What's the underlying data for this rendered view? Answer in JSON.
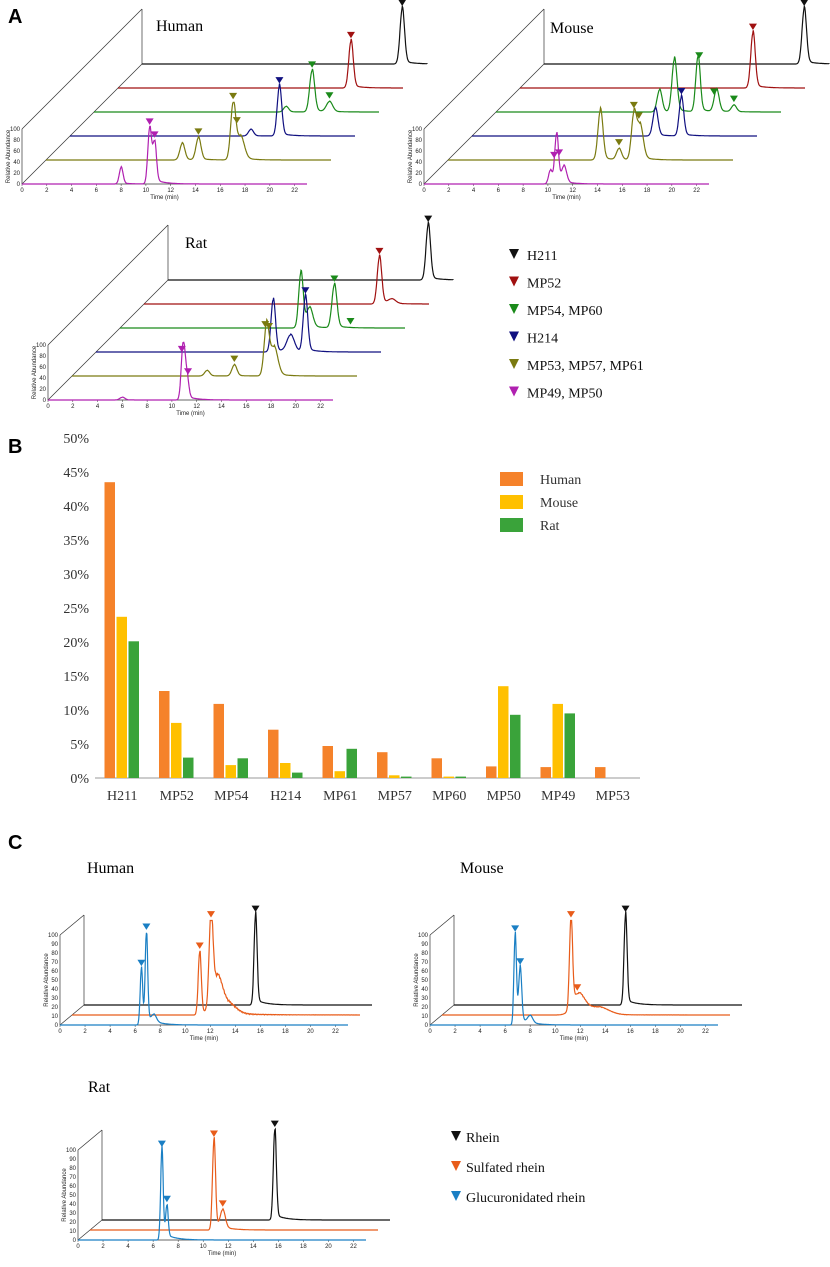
{
  "panels": {
    "a": "A",
    "b": "B",
    "c": "C"
  },
  "common": {
    "time_label": "Time (min)",
    "yaxis_label": "Relative Abundance",
    "y_ticks": [
      "0",
      "10",
      "20",
      "30",
      "40",
      "50",
      "60",
      "70",
      "80",
      "90",
      "100"
    ],
    "x_ticks": [
      "0",
      "2",
      "4",
      "6",
      "8",
      "10",
      "12",
      "14",
      "16",
      "18",
      "20",
      "22"
    ]
  },
  "panel_a": {
    "legend": [
      {
        "label": "H211",
        "color": "#111111"
      },
      {
        "label": "MP52",
        "color": "#a01010"
      },
      {
        "label": "MP54, MP60",
        "color": "#1a8a1a"
      },
      {
        "label": "H214",
        "color": "#101080"
      },
      {
        "label": "MP53, MP57, MP61",
        "color": "#7a7a10"
      },
      {
        "label": "MP49, MP50",
        "color": "#b020b0"
      }
    ],
    "species": [
      {
        "name": "Human",
        "traces": [
          {
            "color": "#111111",
            "peaks": [
              [
                21.0,
                100,
                0.18
              ]
            ],
            "markers": [
              21.0
            ]
          },
          {
            "color": "#a01010",
            "peaks": [
              [
                18.8,
                85,
                0.18
              ]
            ],
            "markers": [
              18.8
            ]
          },
          {
            "color": "#1a8a1a",
            "peaks": [
              [
                17.6,
                75,
                0.2
              ],
              [
                19.0,
                18,
                0.25
              ],
              [
                15.5,
                10,
                0.2
              ]
            ],
            "markers": [
              17.6,
              19.0
            ]
          },
          {
            "color": "#101080",
            "peaks": [
              [
                16.9,
                90,
                0.18
              ],
              [
                14.6,
                12,
                0.2
              ]
            ],
            "markers": [
              16.9
            ]
          },
          {
            "color": "#7a7a10",
            "peaks": [
              [
                15.1,
                100,
                0.2
              ],
              [
                15.7,
                40,
                0.3
              ],
              [
                12.3,
                40,
                0.2
              ],
              [
                11.0,
                30,
                0.2
              ]
            ],
            "markers": [
              15.1,
              15.4,
              12.3
            ]
          },
          {
            "color": "#b020b0",
            "peaks": [
              [
                10.3,
                100,
                0.15
              ],
              [
                10.7,
                72,
                0.15
              ],
              [
                8.0,
                30,
                0.15
              ]
            ],
            "markers": [
              10.3,
              10.7
            ]
          }
        ]
      },
      {
        "name": "Mouse",
        "traces": [
          {
            "color": "#111111",
            "peaks": [
              [
                21.0,
                100,
                0.18
              ]
            ],
            "markers": [
              21.0
            ]
          },
          {
            "color": "#a01010",
            "peaks": [
              [
                18.8,
                100,
                0.18
              ]
            ],
            "markers": [
              18.8
            ]
          },
          {
            "color": "#1a8a1a",
            "peaks": [
              [
                14.4,
                95,
                0.2
              ],
              [
                16.3,
                100,
                0.18
              ],
              [
                17.8,
                40,
                0.2
              ],
              [
                13.2,
                40,
                0.2
              ],
              [
                19.2,
                12,
                0.2
              ]
            ],
            "markers": [
              16.4,
              17.6,
              19.2
            ]
          },
          {
            "color": "#101080",
            "peaks": [
              [
                16.9,
                70,
                0.18
              ],
              [
                14.8,
                50,
                0.2
              ]
            ],
            "markers": [
              16.9
            ]
          },
          {
            "color": "#7a7a10",
            "peaks": [
              [
                15.0,
                80,
                0.2
              ],
              [
                15.5,
                60,
                0.25
              ],
              [
                12.3,
                90,
                0.2
              ],
              [
                13.8,
                20,
                0.2
              ]
            ],
            "markers": [
              15.0,
              15.4,
              13.8
            ]
          },
          {
            "color": "#b020b0",
            "peaks": [
              [
                10.7,
                90,
                0.15
              ],
              [
                11.3,
                30,
                0.2
              ],
              [
                10.2,
                25,
                0.15
              ]
            ],
            "markers": [
              10.5,
              10.9
            ]
          }
        ]
      },
      {
        "name": "Rat",
        "traces": [
          {
            "color": "#111111",
            "peaks": [
              [
                21.0,
                100,
                0.18
              ]
            ],
            "markers": [
              21.0
            ]
          },
          {
            "color": "#a01010",
            "peaks": [
              [
                19.0,
                85,
                0.18
              ],
              [
                20.0,
                8,
                0.3
              ]
            ],
            "markers": [
              19.0
            ]
          },
          {
            "color": "#1a8a1a",
            "peaks": [
              [
                17.3,
                78,
                0.2
              ],
              [
                14.6,
                100,
                0.18
              ],
              [
                15.3,
                35,
                0.25
              ]
            ],
            "markers": [
              17.3,
              18.6
            ]
          },
          {
            "color": "#101080",
            "peaks": [
              [
                16.9,
                100,
                0.18
              ],
              [
                14.3,
                95,
                0.18
              ],
              [
                15.7,
                30,
                0.3
              ]
            ],
            "markers": [
              16.9
            ]
          },
          {
            "color": "#7a7a10",
            "peaks": [
              [
                15.7,
                90,
                0.2
              ],
              [
                16.3,
                50,
                0.3
              ],
              [
                13.1,
                20,
                0.2
              ],
              [
                10.9,
                10,
                0.2
              ]
            ],
            "markers": [
              15.6,
              15.9,
              13.1
            ]
          },
          {
            "color": "#b020b0",
            "peaks": [
              [
                10.9,
                100,
                0.15
              ],
              [
                11.2,
                40,
                0.15
              ],
              [
                6.0,
                5,
                0.2
              ]
            ],
            "markers": [
              10.8,
              11.3
            ]
          }
        ]
      }
    ]
  },
  "chart_data": [
    {
      "type": "bar",
      "title": "",
      "xlabel": "",
      "ylabel": "",
      "ylim": [
        0,
        50
      ],
      "y_tick_labels": [
        "0%",
        "5%",
        "10%",
        "15%",
        "20%",
        "25%",
        "30%",
        "35%",
        "40%",
        "45%",
        "50%"
      ],
      "categories": [
        "H211",
        "MP52",
        "MP54",
        "H214",
        "MP61",
        "MP57",
        "MP60",
        "MP50",
        "MP49",
        "MP53"
      ],
      "series": [
        {
          "name": "Human",
          "color": "#f5822a",
          "values": [
            43.5,
            12.8,
            10.9,
            7.1,
            4.7,
            3.8,
            2.9,
            1.7,
            1.6,
            1.6
          ]
        },
        {
          "name": "Mouse",
          "color": "#ffc000",
          "values": [
            23.7,
            8.1,
            1.9,
            2.2,
            1.0,
            0.4,
            0.2,
            13.5,
            10.9,
            0
          ]
        },
        {
          "name": "Rat",
          "color": "#3aa33a",
          "values": [
            20.1,
            3.0,
            2.9,
            0.8,
            4.3,
            0.2,
            0.2,
            9.3,
            9.5,
            0
          ]
        }
      ],
      "legend": "top-right",
      "grid": false
    }
  ],
  "panel_c": {
    "legend": [
      {
        "label": "Rhein",
        "color": "#111111"
      },
      {
        "label": "Sulfated rhein",
        "color": "#e85c1a"
      },
      {
        "label": "Glucuronidated rhein",
        "color": "#1a7fc4"
      }
    ],
    "species": [
      {
        "name": "Human",
        "traces": [
          {
            "color": "#111111",
            "peaks": [
              [
                13.7,
                100,
                0.12
              ]
            ],
            "markers": [
              13.7
            ],
            "noise": 0
          },
          {
            "color": "#e85c1a",
            "peaks": [
              [
                10.2,
                70,
                0.12
              ],
              [
                11.1,
                100,
                0.15
              ],
              [
                11.6,
                35,
                0.4
              ],
              [
                12.5,
                10,
                0.6
              ]
            ],
            "markers": [
              10.2,
              11.1
            ],
            "noise": 3
          },
          {
            "color": "#1a7fc4",
            "peaks": [
              [
                6.5,
                62,
                0.1
              ],
              [
                6.9,
                100,
                0.1
              ],
              [
                7.5,
                8,
                0.2
              ]
            ],
            "markers": [
              6.5,
              6.9
            ],
            "noise": 0
          }
        ]
      },
      {
        "name": "Mouse",
        "traces": [
          {
            "color": "#111111",
            "peaks": [
              [
                13.7,
                100,
                0.12
              ]
            ],
            "markers": [
              13.7
            ],
            "noise": 0
          },
          {
            "color": "#e85c1a",
            "peaks": [
              [
                10.3,
                100,
                0.12
              ],
              [
                10.9,
                20,
                0.5
              ],
              [
                12.5,
                8,
                0.8
              ]
            ],
            "markers": [
              10.3,
              10.8
            ],
            "noise": 1
          },
          {
            "color": "#1a7fc4",
            "peaks": [
              [
                6.8,
                100,
                0.1
              ],
              [
                7.2,
                60,
                0.12
              ],
              [
                8.0,
                8,
                0.2
              ]
            ],
            "markers": [
              6.8,
              7.2
            ],
            "noise": 0
          }
        ]
      },
      {
        "name": "Rat",
        "traces": [
          {
            "color": "#111111",
            "peaks": [
              [
                13.8,
                100,
                0.12
              ]
            ],
            "markers": [
              13.8
            ],
            "noise": 0
          },
          {
            "color": "#e85c1a",
            "peaks": [
              [
                9.9,
                100,
                0.12
              ],
              [
                10.6,
                20,
                0.2
              ]
            ],
            "markers": [
              9.9,
              10.6
            ],
            "noise": 0
          },
          {
            "color": "#1a7fc4",
            "peaks": [
              [
                6.7,
                100,
                0.1
              ],
              [
                7.1,
                35,
                0.1
              ]
            ],
            "markers": [
              6.7,
              7.1
            ],
            "noise": 0
          }
        ]
      }
    ]
  }
}
